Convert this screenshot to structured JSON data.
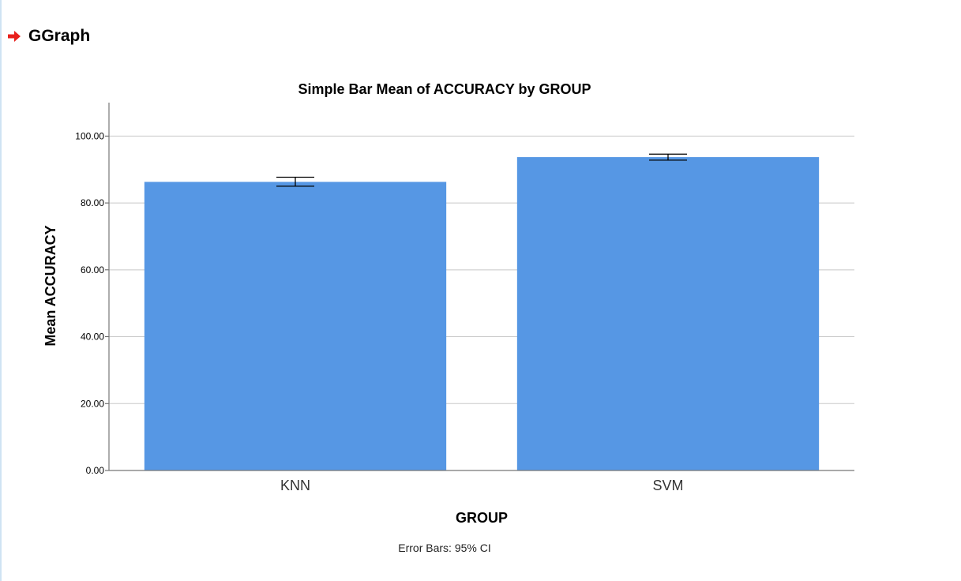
{
  "header": {
    "title": "GGraph",
    "icon": "arrow-right-icon",
    "icon_color": "#e8201c"
  },
  "chart_data": {
    "type": "bar",
    "title": "Simple Bar Mean of ACCURACY by GROUP",
    "xlabel": "GROUP",
    "ylabel": "Mean ACCURACY",
    "categories": [
      "KNN",
      "SVM"
    ],
    "values": [
      86.3,
      93.7
    ],
    "error_bars": {
      "type": "95% CI",
      "lower": [
        85.0,
        92.8
      ],
      "upper": [
        87.7,
        94.6
      ]
    },
    "ylim": [
      0,
      110
    ],
    "yticks": [
      0,
      20,
      40,
      60,
      80,
      100
    ],
    "ytick_labels": [
      "0.00",
      "20.00",
      "40.00",
      "60.00",
      "80.00",
      "100.00"
    ],
    "grid": true,
    "legend": "none",
    "bar_color": "#5697e4",
    "footnote": "Error Bars: 95% CI"
  }
}
